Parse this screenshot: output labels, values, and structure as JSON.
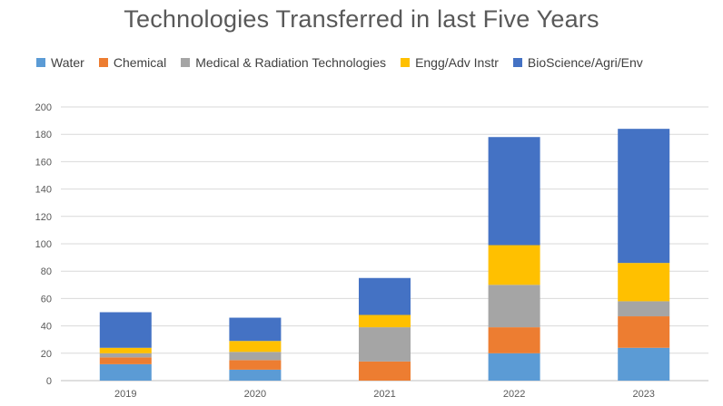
{
  "chart_data": {
    "type": "bar",
    "stacked": true,
    "title": "Technologies Transferred in last Five Years",
    "categories": [
      "2019",
      "2020",
      "2021",
      "2022",
      "2023"
    ],
    "series": [
      {
        "name": "Water",
        "color": "#5B9BD5",
        "values": [
          12,
          8,
          0,
          20,
          24
        ]
      },
      {
        "name": "Chemical",
        "color": "#ED7D31",
        "values": [
          5,
          7,
          14,
          19,
          23
        ]
      },
      {
        "name": "Medical & Radiation Technologies",
        "color": "#A5A5A5",
        "values": [
          3,
          6,
          25,
          31,
          11
        ]
      },
      {
        "name": "Engg/Adv Instr",
        "color": "#FFC000",
        "values": [
          4,
          8,
          9,
          29,
          28
        ]
      },
      {
        "name": "BioScience/Agri/Env",
        "color": "#4472C4",
        "values": [
          26,
          17,
          27,
          79,
          98
        ]
      }
    ],
    "ylim": [
      0,
      200
    ],
    "yticks": [
      0,
      20,
      40,
      60,
      80,
      100,
      120,
      140,
      160,
      180,
      200
    ],
    "grid": true,
    "legend_position": "top"
  }
}
